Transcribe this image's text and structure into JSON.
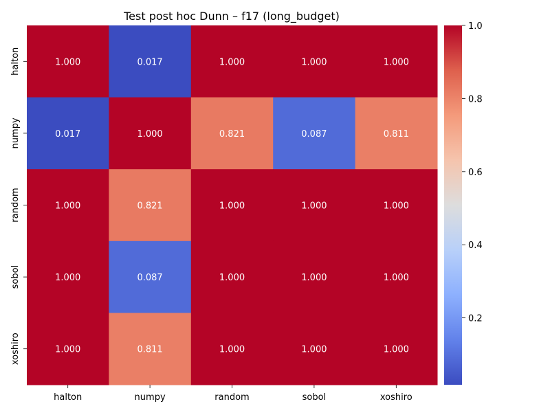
{
  "chart_data": {
    "type": "heatmap",
    "title": "Test post hoc Dunn – f17 (long_budget)",
    "x_categories": [
      "halton",
      "numpy",
      "random",
      "sobol",
      "xoshiro"
    ],
    "y_categories": [
      "halton",
      "numpy",
      "random",
      "sobol",
      "xoshiro"
    ],
    "values": [
      [
        1.0,
        0.017,
        1.0,
        1.0,
        1.0
      ],
      [
        0.017,
        1.0,
        0.821,
        0.087,
        0.811
      ],
      [
        1.0,
        0.821,
        1.0,
        1.0,
        1.0
      ],
      [
        1.0,
        0.087,
        1.0,
        1.0,
        1.0
      ],
      [
        1.0,
        0.811,
        1.0,
        1.0,
        1.0
      ]
    ],
    "value_format_decimals": 3,
    "colormap": "coolwarm",
    "colorbar": {
      "range": [
        0.017,
        1.0
      ],
      "ticks": [
        0.2,
        0.4,
        0.6,
        0.8,
        1.0
      ],
      "tick_labels": [
        "0.2",
        "0.4",
        "0.6",
        "0.8",
        "1.0"
      ]
    },
    "xlabel": "",
    "ylabel": ""
  }
}
